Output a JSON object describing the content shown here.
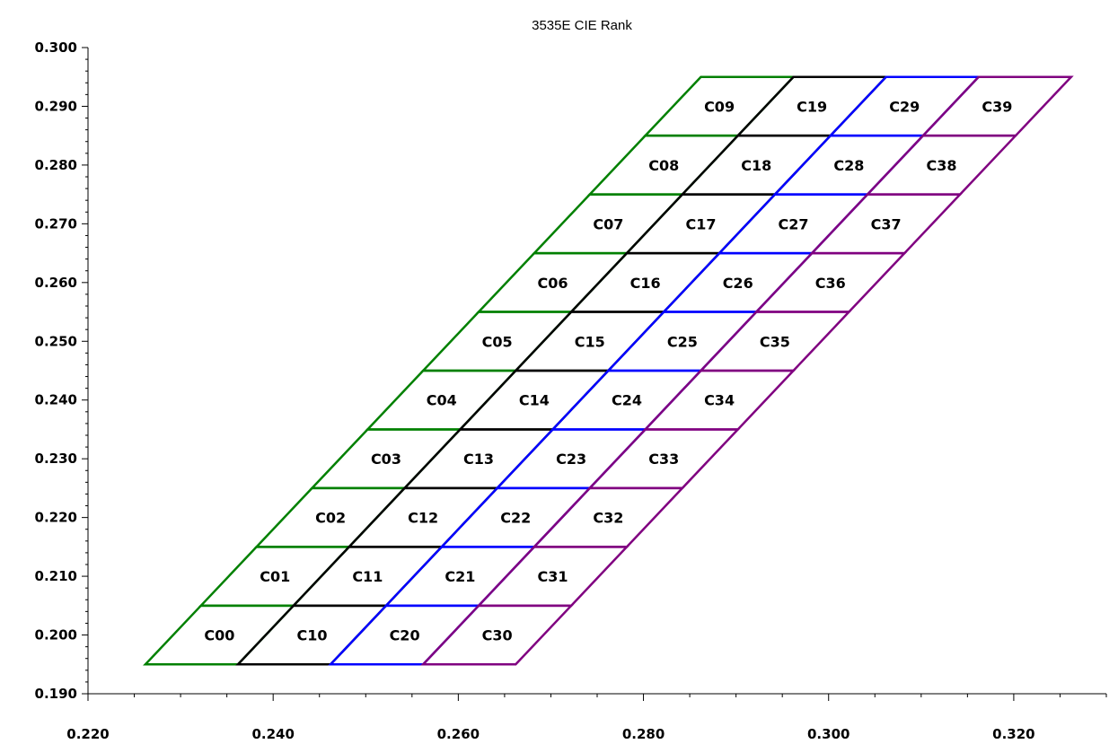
{
  "chart_data": {
    "type": "diagram-grid",
    "title": "3535E CIE Rank",
    "xlabel": "",
    "ylabel": "",
    "xlim": [
      0.22,
      0.33
    ],
    "ylim": [
      0.19,
      0.3
    ],
    "grid": false,
    "x_ticks": [
      "0.220",
      "0.240",
      "0.260",
      "0.280",
      "0.300",
      "0.320"
    ],
    "y_ticks": [
      "0.190",
      "0.200",
      "0.210",
      "0.220",
      "0.230",
      "0.240",
      "0.250",
      "0.260",
      "0.270",
      "0.280",
      "0.290",
      "0.300"
    ],
    "x_tick_values": [
      0.22,
      0.24,
      0.26,
      0.28,
      0.3,
      0.32
    ],
    "y_tick_values": [
      0.19,
      0.2,
      0.21,
      0.22,
      0.23,
      0.24,
      0.25,
      0.26,
      0.27,
      0.28,
      0.29,
      0.3
    ],
    "grid_model": {
      "x_origin": 0.2262,
      "y_origin": 0.195,
      "row_height": 0.01,
      "row_shift_x": 0.006,
      "column_width": 0.01,
      "rows": 10,
      "columns": 4
    },
    "series": [
      {
        "color": "#008000",
        "labels": [
          "C00",
          "C01",
          "C02",
          "C03",
          "C04",
          "C05",
          "C06",
          "C07",
          "C08",
          "C09"
        ]
      },
      {
        "color": "#000000",
        "labels": [
          "C10",
          "C11",
          "C12",
          "C13",
          "C14",
          "C15",
          "C16",
          "C17",
          "C18",
          "C19"
        ]
      },
      {
        "color": "#0000ff",
        "labels": [
          "C20",
          "C21",
          "C22",
          "C23",
          "C24",
          "C25",
          "C26",
          "C27",
          "C28",
          "C29"
        ]
      },
      {
        "color": "#800080",
        "labels": [
          "C30",
          "C31",
          "C32",
          "C33",
          "C34",
          "C35",
          "C36",
          "C37",
          "C38",
          "C39"
        ]
      }
    ]
  }
}
